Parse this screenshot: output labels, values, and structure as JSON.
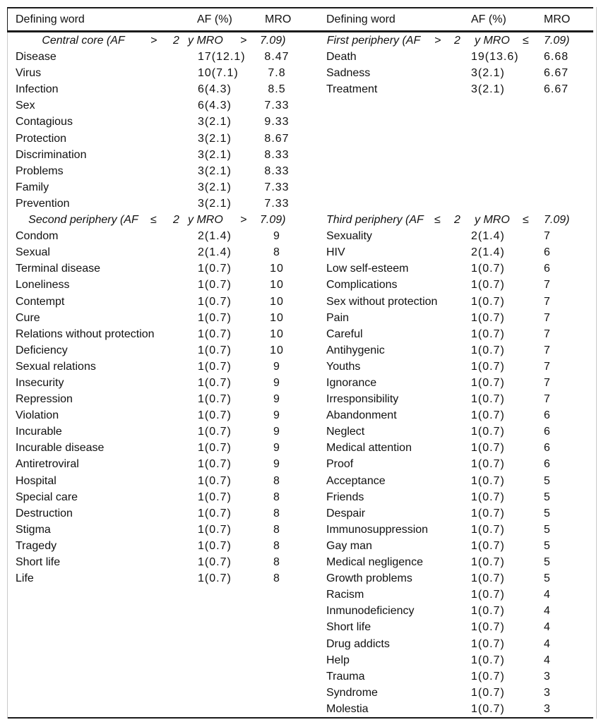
{
  "table": {
    "column_headers": [
      "Defining word",
      "AF (%)",
      "MRO"
    ],
    "halves": [
      {
        "sections": [
          {
            "header": {
              "label": "Central core (AF",
              "op1": ">",
              "val1": "2",
              "mid": "y MRO",
              "op2": ">",
              "val2": "7.09)"
            },
            "rows": [
              [
                "Disease",
                "17(12.1)",
                "8.47"
              ],
              [
                "Virus",
                "10(7.1)",
                "7.8"
              ],
              [
                "Infection",
                "6(4.3)",
                "8.5"
              ],
              [
                "Sex",
                "6(4.3)",
                "7.33"
              ],
              [
                "Contagious",
                "3(2.1)",
                "9.33"
              ],
              [
                "Protection",
                "3(2.1)",
                "8.67"
              ],
              [
                "Discrimination",
                "3(2.1)",
                "8.33"
              ],
              [
                "Problems",
                "3(2.1)",
                "8.33"
              ],
              [
                "Family",
                "3(2.1)",
                "7.33"
              ],
              [
                "Prevention",
                "3(2.1)",
                "7.33"
              ]
            ]
          },
          {
            "header": {
              "label": "Second periphery (AF",
              "op1": "≤",
              "val1": "2",
              "mid": "y MRO",
              "op2": ">",
              "val2": "7.09)"
            },
            "rows": [
              [
                "Condom",
                "2(1.4)",
                "9"
              ],
              [
                "Sexual",
                "2(1.4)",
                "8"
              ],
              [
                "Terminal disease",
                "1(0.7)",
                "10"
              ],
              [
                "Loneliness",
                "1(0.7)",
                "10"
              ],
              [
                "Contempt",
                "1(0.7)",
                "10"
              ],
              [
                "Cure",
                "1(0.7)",
                "10"
              ],
              [
                "Relations without protection",
                "1(0.7)",
                "10"
              ],
              [
                "Deficiency",
                "1(0.7)",
                "10"
              ],
              [
                "Sexual relations",
                "1(0.7)",
                "9"
              ],
              [
                "Insecurity",
                "1(0.7)",
                "9"
              ],
              [
                "Repression",
                "1(0.7)",
                "9"
              ],
              [
                "Violation",
                "1(0.7)",
                "9"
              ],
              [
                "Incurable",
                "1(0.7)",
                "9"
              ],
              [
                "Incurable disease",
                "1(0.7)",
                "9"
              ],
              [
                "Antiretroviral",
                "1(0.7)",
                "9"
              ],
              [
                "Hospital",
                "1(0.7)",
                "8"
              ],
              [
                "Special care",
                "1(0.7)",
                "8"
              ],
              [
                "Destruction",
                "1(0.7)",
                "8"
              ],
              [
                "Stigma",
                "1(0.7)",
                "8"
              ],
              [
                "Tragedy",
                "1(0.7)",
                "8"
              ],
              [
                "Short life",
                "1(0.7)",
                "8"
              ],
              [
                "Life",
                "1(0.7)",
                "8"
              ]
            ]
          }
        ]
      },
      {
        "sections": [
          {
            "header": {
              "label": "First periphery (AF",
              "op1": ">",
              "val1": "2",
              "mid": "y MRO",
              "op2": "≤",
              "val2": "7.09)"
            },
            "rows": [
              [
                "Death",
                "19(13.6)",
                "6.68"
              ],
              [
                "Sadness",
                "3(2.1)",
                "6.67"
              ],
              [
                "Treatment",
                "3(2.1)",
                "6.67"
              ]
            ]
          },
          {
            "gap_rows": 7,
            "header": {
              "label": "Third periphery (AF",
              "op1": "≤",
              "val1": "2",
              "mid": "y MRO",
              "op2": "≤",
              "val2": "7.09)"
            },
            "rows": [
              [
                "Sexuality",
                "2(1.4)",
                "7"
              ],
              [
                "HIV",
                "2(1.4)",
                "6"
              ],
              [
                "Low self-esteem",
                "1(0.7)",
                "6"
              ],
              [
                "Complications",
                "1(0.7)",
                "7"
              ],
              [
                "Sex without protection",
                "1(0.7)",
                "7"
              ],
              [
                "Pain",
                "1(0.7)",
                "7"
              ],
              [
                "Careful",
                "1(0.7)",
                "7"
              ],
              [
                "Antihygenic",
                "1(0.7)",
                "7"
              ],
              [
                "Youths",
                "1(0.7)",
                "7"
              ],
              [
                "Ignorance",
                "1(0.7)",
                "7"
              ],
              [
                "Irresponsibility",
                "1(0.7)",
                "7"
              ],
              [
                "Abandonment",
                "1(0.7)",
                "6"
              ],
              [
                "Neglect",
                "1(0.7)",
                "6"
              ],
              [
                "Medical attention",
                "1(0.7)",
                "6"
              ],
              [
                "Proof",
                "1(0.7)",
                "6"
              ],
              [
                "Acceptance",
                "1(0.7)",
                "5"
              ],
              [
                "Friends",
                "1(0.7)",
                "5"
              ],
              [
                "Despair",
                "1(0.7)",
                "5"
              ],
              [
                "Immunosuppression",
                "1(0.7)",
                "5"
              ],
              [
                "Gay man",
                "1(0.7)",
                "5"
              ],
              [
                "Medical negligence",
                "1(0.7)",
                "5"
              ],
              [
                "Growth problems",
                "1(0.7)",
                "5"
              ],
              [
                "Racism",
                "1(0.7)",
                "4"
              ],
              [
                "Inmunodeficiency",
                "1(0.7)",
                "4"
              ],
              [
                "Short life",
                "1(0.7)",
                "4"
              ],
              [
                "Drug addicts",
                "1(0.7)",
                "4"
              ],
              [
                "Help",
                "1(0.7)",
                "4"
              ],
              [
                "Trauma",
                "1(0.7)",
                "3"
              ],
              [
                "Syndrome",
                "1(0.7)",
                "3"
              ],
              [
                "Molestia",
                "1(0.7)",
                "3"
              ]
            ]
          }
        ]
      }
    ]
  }
}
